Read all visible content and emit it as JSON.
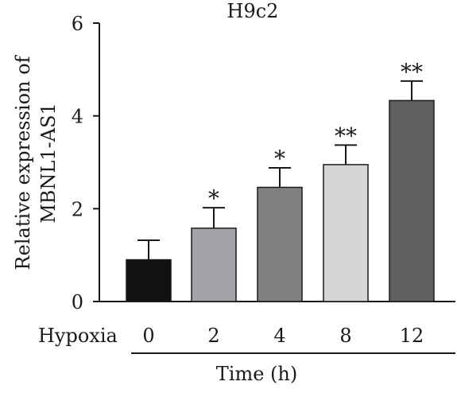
{
  "chart_data": {
    "type": "bar",
    "title": "H9c2",
    "ylabel_line1": "Relative expression of",
    "ylabel_line2": "MBNL1-AS1",
    "xlabel": "Time (h)",
    "row_label": "Hypoxia",
    "ylim": [
      0,
      6
    ],
    "yticks": [
      0,
      2,
      4,
      6
    ],
    "categories": [
      "0",
      "2",
      "4",
      "8",
      "12"
    ],
    "values": [
      0.9,
      1.58,
      2.46,
      2.95,
      4.33
    ],
    "errors": [
      0.42,
      0.44,
      0.42,
      0.42,
      0.42
    ],
    "significance": [
      "",
      "*",
      "*",
      "**",
      "**"
    ],
    "colors": [
      "#111111",
      "#a3a2a7",
      "#7f807f",
      "#d6d6d6",
      "#606060"
    ],
    "grid": false
  }
}
